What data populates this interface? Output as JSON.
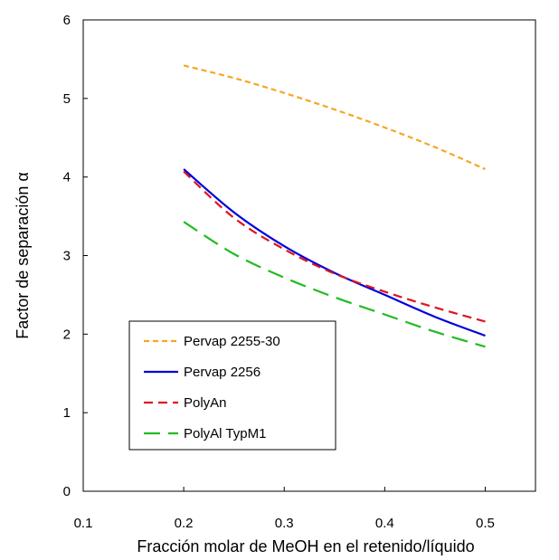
{
  "chart_data": {
    "type": "line",
    "xlabel": "Fracción molar de MeOH en el retenido/líquido",
    "ylabel": "Factor de separación α",
    "xlim": [
      0.1,
      0.55
    ],
    "ylim": [
      0,
      6
    ],
    "x_ticks": [
      "0.1",
      "0.2",
      "0.3",
      "0.4",
      "0.5"
    ],
    "y_ticks": [
      "0",
      "1",
      "2",
      "3",
      "4",
      "5",
      "6"
    ],
    "grid": false,
    "legend_position": "bottom-left",
    "series": [
      {
        "name": "Pervap 2255-30",
        "color": "#F5A623",
        "dash": "short-dash",
        "x": [
          0.2,
          0.25,
          0.3,
          0.35,
          0.4,
          0.45,
          0.5
        ],
        "y": [
          5.42,
          5.26,
          5.07,
          4.86,
          4.63,
          4.38,
          4.1
        ]
      },
      {
        "name": "Pervap 2256",
        "color": "#0000DD",
        "dash": "solid",
        "x": [
          0.2,
          0.25,
          0.3,
          0.35,
          0.4,
          0.45,
          0.5
        ],
        "y": [
          4.1,
          3.55,
          3.12,
          2.78,
          2.5,
          2.22,
          1.98
        ]
      },
      {
        "name": "PolyAn",
        "color": "#E0141E",
        "dash": "dash",
        "x": [
          0.2,
          0.25,
          0.3,
          0.35,
          0.4,
          0.45,
          0.5
        ],
        "y": [
          4.07,
          3.48,
          3.08,
          2.77,
          2.54,
          2.34,
          2.16
        ]
      },
      {
        "name": "PolyAl TypM1",
        "color": "#22BB22",
        "dash": "long-dash",
        "x": [
          0.2,
          0.25,
          0.3,
          0.35,
          0.4,
          0.45,
          0.5
        ],
        "y": [
          3.43,
          3.02,
          2.72,
          2.47,
          2.25,
          2.03,
          1.84
        ]
      }
    ]
  }
}
